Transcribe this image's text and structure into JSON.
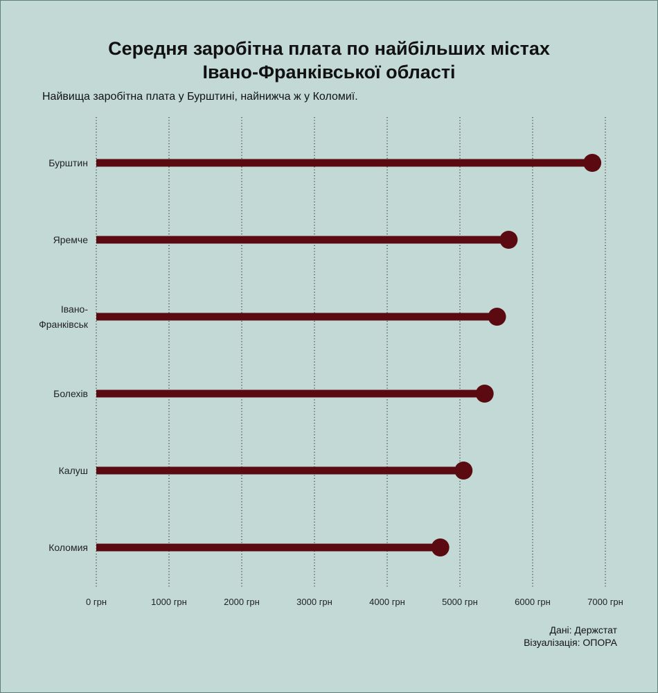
{
  "title_line1": "Середня заробітна плата по найбільших містах",
  "title_line2": "Івано-Франківської області",
  "subtitle": "Найвища заробітна плата у Бурштині, найнижча ж у Коломиї.",
  "source": "Дані: Держстат",
  "credit": "Візуалізація: ОПОРА",
  "colors": {
    "background": "#c2d9d5",
    "lollipop": "#5c0a12",
    "grid": "#333333"
  },
  "chart_data": {
    "type": "lollipop",
    "orientation": "horizontal",
    "categories": [
      "Бурштин",
      "Яремче",
      "Івано-Франківськ",
      "Болехів",
      "Калуш",
      "Коломия"
    ],
    "category_lines": [
      [
        "Бурштин"
      ],
      [
        "Яремче"
      ],
      [
        "Івано-",
        "Франківськ"
      ],
      [
        "Болехів"
      ],
      [
        "Калуш"
      ],
      [
        "Коломия"
      ]
    ],
    "values": [
      6820,
      5670,
      5510,
      5340,
      5050,
      4730
    ],
    "x_ticks": [
      0,
      1000,
      2000,
      3000,
      4000,
      5000,
      6000,
      7000
    ],
    "x_tick_labels": [
      "0 грн",
      "1000 грн",
      "2000 грн",
      "3000 грн",
      "4000 грн",
      "5000 грн",
      "6000 грн",
      "7000 грн"
    ],
    "xlim": [
      0,
      7000
    ],
    "grid": "vertical dotted",
    "legend": "none"
  }
}
